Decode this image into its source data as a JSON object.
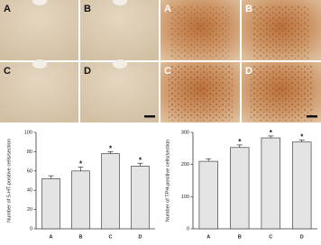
{
  "panels": [
    {
      "labels": [
        "A",
        "B",
        "C",
        "D"
      ]
    },
    {
      "labels": [
        "A",
        "B",
        "C",
        "D"
      ]
    }
  ],
  "chart_data": [
    {
      "type": "bar",
      "ylabel": "Number of 5-HT-positive cells/section",
      "categories": [
        "A",
        "B",
        "C",
        "D"
      ],
      "values": [
        52,
        60,
        78,
        65
      ],
      "errors": [
        3,
        4,
        2,
        3
      ],
      "significance": [
        null,
        "*",
        "*",
        "*"
      ],
      "color": "#e4e4e4",
      "ylim": [
        0,
        100
      ],
      "yticks": [
        0,
        20,
        40,
        60,
        80,
        100
      ]
    },
    {
      "type": "bar",
      "ylabel": "Number of TPH-positive cells/section",
      "categories": [
        "A",
        "B",
        "C",
        "D"
      ],
      "values": [
        210,
        253,
        283,
        270
      ],
      "errors": [
        8,
        8,
        6,
        6
      ],
      "significance": [
        null,
        "*",
        "*",
        "*"
      ],
      "color": "#e4e4e4",
      "ylim": [
        0,
        300
      ],
      "yticks": [
        0,
        100,
        200,
        300
      ]
    }
  ]
}
